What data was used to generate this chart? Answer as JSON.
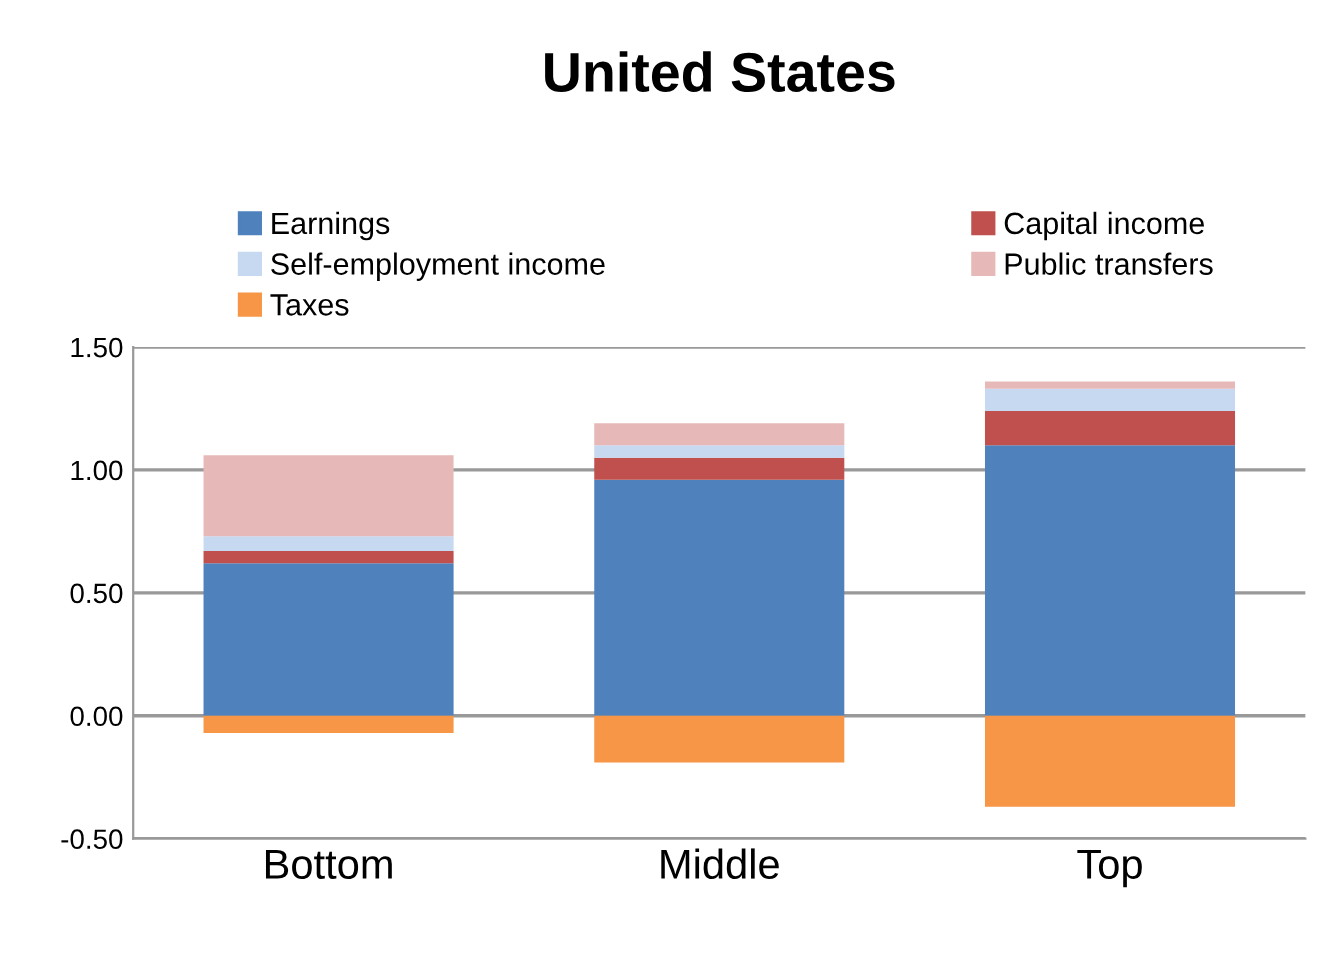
{
  "chart_data": {
    "type": "bar",
    "title": "United States",
    "stacked": true,
    "categories": [
      "Bottom",
      "Middle",
      "Top"
    ],
    "series": [
      {
        "name": "Earnings",
        "color": "#4f81bd",
        "values": [
          0.62,
          0.96,
          1.1
        ]
      },
      {
        "name": "Capital income",
        "color": "#c0504d",
        "values": [
          0.05,
          0.09,
          0.14
        ]
      },
      {
        "name": "Self-employment income",
        "color": "#c6d9f1",
        "values": [
          0.06,
          0.05,
          0.09
        ]
      },
      {
        "name": "Public transfers",
        "color": "#e6b9b8",
        "values": [
          0.33,
          0.09,
          0.03
        ]
      },
      {
        "name": "Taxes",
        "color": "#f79646",
        "values": [
          -0.07,
          -0.19,
          -0.37
        ]
      }
    ],
    "ylim": [
      -0.5,
      1.5
    ],
    "yticks": [
      {
        "value": -0.5,
        "label": "-0.50"
      },
      {
        "value": 0,
        "label": "0.00"
      },
      {
        "value": 0.5,
        "label": "0.50"
      },
      {
        "value": 1,
        "label": "1.00"
      },
      {
        "value": 1.5,
        "label": "1.50"
      }
    ],
    "grid": "y",
    "legend": "top"
  }
}
